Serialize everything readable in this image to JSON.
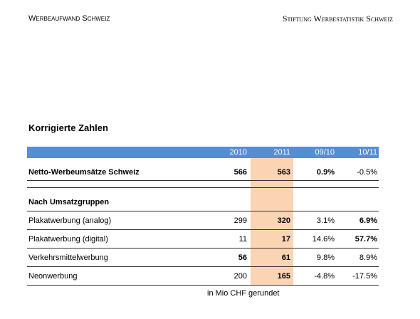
{
  "header": {
    "left": "Werbeaufwand Schweiz",
    "right": "Stiftung Werbestatistik Schweiz"
  },
  "title": "Korrigierte Zahlen",
  "table": {
    "columns": [
      "2010",
      "2011",
      "09/10",
      "10/11"
    ],
    "total": {
      "label": "Netto-Werbeumsätze Schweiz",
      "cells": [
        "566",
        "563",
        "0.9%",
        "-0.5%"
      ],
      "bold": [
        true,
        true,
        true,
        false
      ]
    },
    "group_title": "Nach Umsatzgruppen",
    "rows": [
      {
        "label": "Plakatwerbung (analog)",
        "cells": [
          "299",
          "320",
          "3.1%",
          "6.9%"
        ],
        "bold": [
          false,
          true,
          false,
          true
        ]
      },
      {
        "label": "Plakatwerbung (digital)",
        "cells": [
          "11",
          "17",
          "14.6%",
          "57.7%"
        ],
        "bold": [
          false,
          true,
          false,
          true
        ]
      },
      {
        "label": "Verkehrsmittelwerbung",
        "cells": [
          "56",
          "61",
          "9.8%",
          "8.9%"
        ],
        "bold": [
          true,
          true,
          false,
          false
        ]
      },
      {
        "label": "Neonwerbung",
        "cells": [
          "200",
          "165",
          "-4.8%",
          "-17.5%"
        ],
        "bold": [
          false,
          true,
          false,
          false
        ]
      }
    ],
    "highlight_color": "#fbd4b4",
    "header_color": "#558ed5"
  },
  "footnote": "in Mio CHF gerundet"
}
